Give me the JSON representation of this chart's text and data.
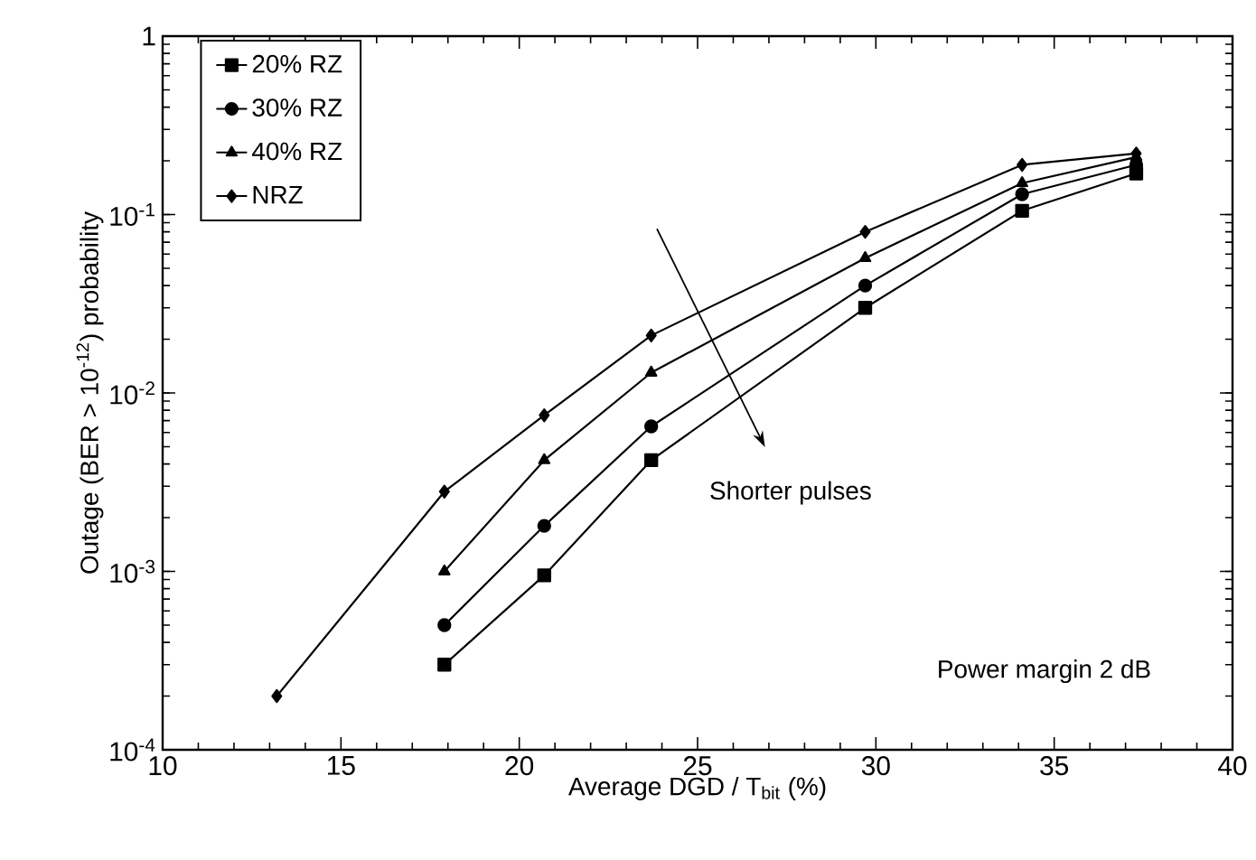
{
  "chart_data": {
    "type": "line",
    "xlabel": "Average DGD / T$_{bit}$ (%)",
    "ylabel": "Outage (BER > 10$^{-12}$) probability",
    "annotations": [
      "Shorter pulses",
      "Power margin 2 dB"
    ],
    "log": "y",
    "grid": false,
    "legend": "top left",
    "line_style": "solid",
    "xlim": [
      10,
      40
    ],
    "xticks": [
      10,
      15,
      20,
      25,
      30,
      35,
      40
    ],
    "ylim": [
      0.0001,
      1
    ],
    "yticks": [
      {
        "value": 0.0001,
        "label": "10$^{-4}$"
      },
      {
        "value": 0.001,
        "label": "10$^{-3}$"
      },
      {
        "value": 0.01,
        "label": "10$^{-2}$"
      },
      {
        "value": 0.1,
        "label": "10$^{-1}$"
      },
      {
        "value": 1,
        "label": "1"
      }
    ],
    "series": [
      {
        "name": "20% RZ",
        "color": "#000000",
        "marker": "square",
        "x": [
          17.9,
          20.7,
          23.7,
          29.7,
          34.1,
          37.3
        ],
        "values": [
          0.0003,
          0.00095,
          0.0042,
          0.03,
          0.105,
          0.17
        ]
      },
      {
        "name": "30% RZ",
        "color": "#000000",
        "marker": "circle",
        "x": [
          17.9,
          20.7,
          23.7,
          29.7,
          34.1,
          37.3
        ],
        "values": [
          0.0005,
          0.0018,
          0.0065,
          0.04,
          0.13,
          0.19
        ]
      },
      {
        "name": "40% RZ",
        "color": "#000000",
        "marker": "triangle",
        "x": [
          17.9,
          20.7,
          23.7,
          29.7,
          34.1,
          37.3
        ],
        "values": [
          0.001,
          0.0042,
          0.013,
          0.057,
          0.15,
          0.21
        ]
      },
      {
        "name": "NRZ",
        "color": "#000000",
        "marker": "diamond",
        "x": [
          13.2,
          17.9,
          20.7,
          23.7,
          29.7,
          34.1,
          37.3
        ],
        "values": [
          0.0002,
          0.0028,
          0.0075,
          0.021,
          0.08,
          0.19,
          0.22
        ]
      }
    ]
  }
}
